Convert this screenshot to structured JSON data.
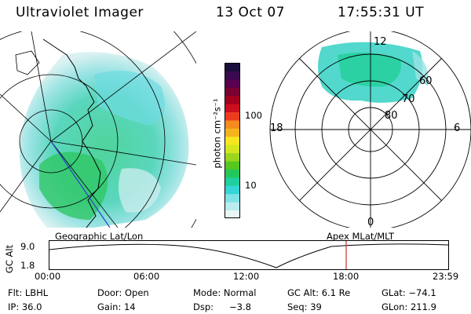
{
  "header": {
    "title": "Ultraviolet Imager",
    "date": "13 Oct 07",
    "time": "17:55:31 UT"
  },
  "colorbar": {
    "label": "photon cm⁻²s⁻¹",
    "ticks": [
      "100",
      "10"
    ],
    "colors": [
      "#e8f6f6",
      "#b9ecee",
      "#7fe2e6",
      "#36d6d6",
      "#20cfa0",
      "#24c85a",
      "#56c81e",
      "#9ad61e",
      "#d4e61e",
      "#f5e81e",
      "#f5b41e",
      "#f58a1e",
      "#ec3c1e",
      "#cc0e1e",
      "#a4001e",
      "#7a0032",
      "#5a0050",
      "#3a0a50",
      "#1a0f3c"
    ]
  },
  "polar_plot": {
    "mlt_labels": {
      "top": "12",
      "left": "18",
      "right": "6",
      "bottom": "0"
    },
    "lat_labels": [
      "60",
      "70",
      "80"
    ]
  },
  "strip": {
    "left_title": "Geographic Lat/Lon",
    "right_title": "Apex MLat/MLT",
    "y_axis_label": "GC Alt",
    "y_ticks": [
      "9.0",
      "1.8"
    ],
    "x_ticks": [
      "00:00",
      "06:00",
      "12:00",
      "18:00",
      "23:59"
    ]
  },
  "info": {
    "row1": [
      "Flt: LBHL",
      "Door: Open",
      "Mode: Normal",
      "GC Alt: 6.1 Re",
      "GLat: −74.1"
    ],
    "row2": [
      "IP: 36.0",
      "Gain: 14",
      "Dsp:",
      "−3.8",
      "Seq: 39",
      "GLon: 211.9"
    ]
  }
}
